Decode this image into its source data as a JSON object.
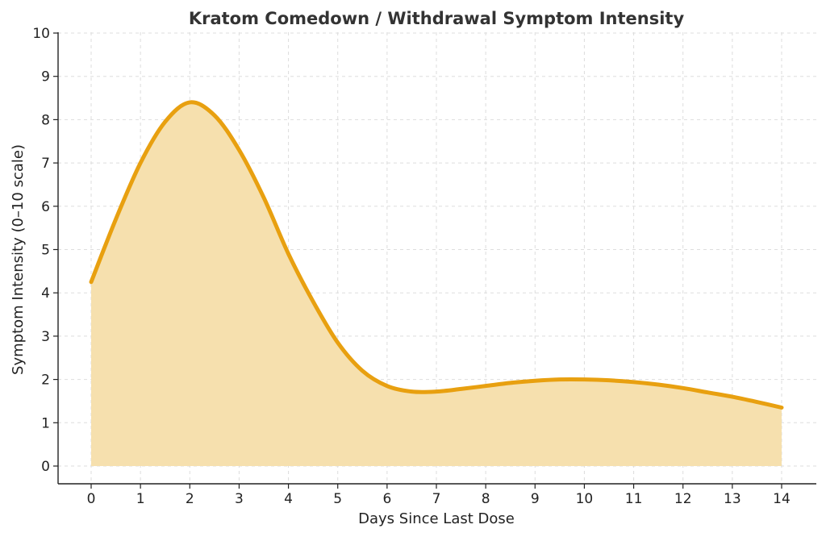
{
  "chart_data": {
    "type": "area",
    "title": "Kratom Comedown / Withdrawal Symptom Intensity",
    "xlabel": "Days Since Last Dose",
    "ylabel": "Symptom Intensity (0–10 scale)",
    "xlim": [
      0,
      14
    ],
    "ylim": [
      0,
      10
    ],
    "xticks": [
      0,
      1,
      2,
      3,
      4,
      5,
      6,
      7,
      8,
      9,
      10,
      11,
      12,
      13,
      14
    ],
    "yticks": [
      0,
      1,
      2,
      3,
      4,
      5,
      6,
      7,
      8,
      9,
      10
    ],
    "grid": true,
    "series": [
      {
        "name": "Symptom Intensity",
        "x": [
          0,
          0.5,
          1,
          1.5,
          2,
          2.5,
          3,
          3.5,
          4,
          4.5,
          5,
          5.5,
          6,
          6.5,
          7,
          7.5,
          8,
          8.5,
          9,
          9.5,
          10,
          10.5,
          11,
          11.5,
          12,
          12.5,
          13,
          13.5,
          14
        ],
        "y": [
          4.25,
          5.7,
          7.0,
          7.95,
          8.4,
          8.1,
          7.3,
          6.2,
          4.9,
          3.8,
          2.85,
          2.2,
          1.85,
          1.72,
          1.72,
          1.78,
          1.85,
          1.92,
          1.97,
          2.0,
          2.0,
          1.98,
          1.94,
          1.88,
          1.8,
          1.7,
          1.6,
          1.48,
          1.35
        ]
      }
    ],
    "colors": {
      "line": "#e8a010",
      "fill": "#f6e0ae",
      "grid": "#dddddd",
      "axis": "#222222",
      "text": "#222222",
      "title": "#333333"
    }
  }
}
